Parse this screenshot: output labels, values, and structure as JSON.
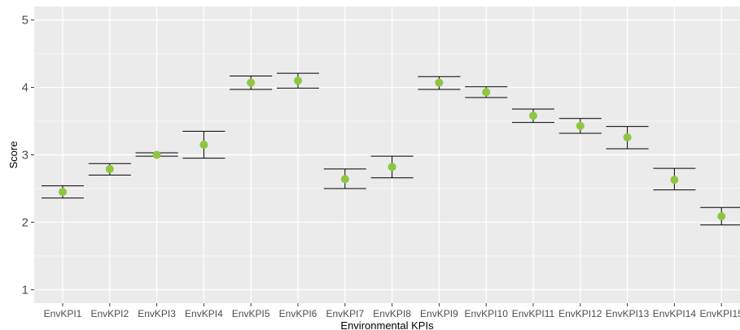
{
  "chart_data": {
    "type": "scatter",
    "title": "",
    "xlabel": "Environmental KPIs",
    "ylabel": "Score",
    "ylim": [
      0.8,
      5.2
    ],
    "yticks": [
      1,
      2,
      3,
      4,
      5
    ],
    "grid": true,
    "categories": [
      "EnvKPI1",
      "EnvKPI2",
      "EnvKPI3",
      "EnvKPI4",
      "EnvKPI5",
      "EnvKPI6",
      "EnvKPI7",
      "EnvKPI8",
      "EnvKPI9",
      "EnvKPI10",
      "EnvKPI11",
      "EnvKPI12",
      "EnvKPI13",
      "EnvKPI14",
      "EnvKPI15"
    ],
    "series": [
      {
        "mean": [
          2.45,
          2.79,
          3.0,
          3.15,
          4.07,
          4.1,
          2.64,
          2.82,
          4.07,
          3.93,
          3.58,
          3.43,
          3.26,
          2.63,
          2.09
        ],
        "lower": [
          2.36,
          2.7,
          2.98,
          2.95,
          3.97,
          3.99,
          2.5,
          2.66,
          3.97,
          3.85,
          3.48,
          3.32,
          3.09,
          2.48,
          1.96
        ],
        "upper": [
          2.54,
          2.87,
          3.03,
          3.35,
          4.17,
          4.21,
          2.79,
          2.98,
          4.16,
          4.01,
          3.68,
          3.54,
          3.42,
          2.8,
          2.22
        ]
      }
    ],
    "colors": {
      "point": "#8dc63f",
      "errorbar": "#000000",
      "panel": "#ebebeb",
      "grid": "#ffffff"
    }
  }
}
